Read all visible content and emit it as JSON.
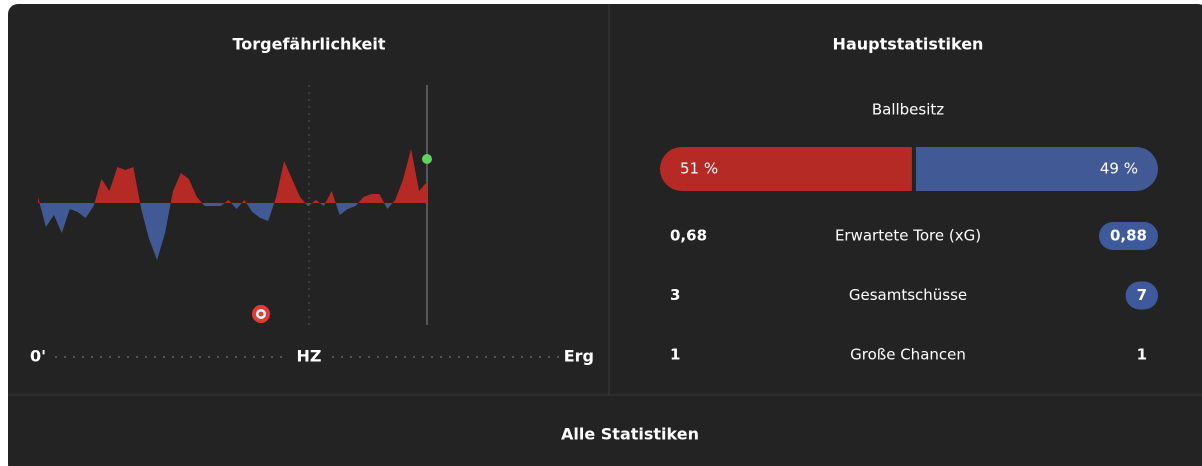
{
  "momentum": {
    "title": "Torgefährlichkeit",
    "values": [
      10,
      -40,
      -20,
      -50,
      -10,
      -15,
      -25,
      -5,
      40,
      20,
      60,
      55,
      60,
      -10,
      -60,
      -95,
      -50,
      20,
      50,
      40,
      10,
      -5,
      -5,
      -5,
      5,
      -10,
      5,
      -15,
      -25,
      -30,
      10,
      70,
      40,
      10,
      -5,
      5,
      -5,
      20,
      -20,
      -10,
      -5,
      10,
      15,
      15,
      -10,
      5,
      40,
      90,
      20,
      35
    ],
    "colors": [
      "#b52a25",
      "#415a96"
    ],
    "timeline": [
      "0'",
      "HZ",
      "Erg"
    ]
  },
  "stats": {
    "title": "Hauptstatistiken",
    "possession": {
      "label": "Ballbesitz",
      "values": [
        51,
        49
      ],
      "value_labels": [
        "51 %",
        "49 %"
      ],
      "colors": [
        "#b52a25",
        "#415a96"
      ]
    },
    "rows": [
      {
        "label": "Erwartete Tore (xG)",
        "values": [
          0.68,
          0.88
        ],
        "value_labels": [
          "0,68",
          "0,88"
        ],
        "highlight": 1
      },
      {
        "label": "Gesamtschüsse",
        "values": [
          3,
          7
        ],
        "highlight": 1
      },
      {
        "label": "Große Chancen",
        "values": [
          1,
          1
        ],
        "highlight": null
      }
    ]
  },
  "footer": {
    "link": "Alle Statistiken"
  }
}
